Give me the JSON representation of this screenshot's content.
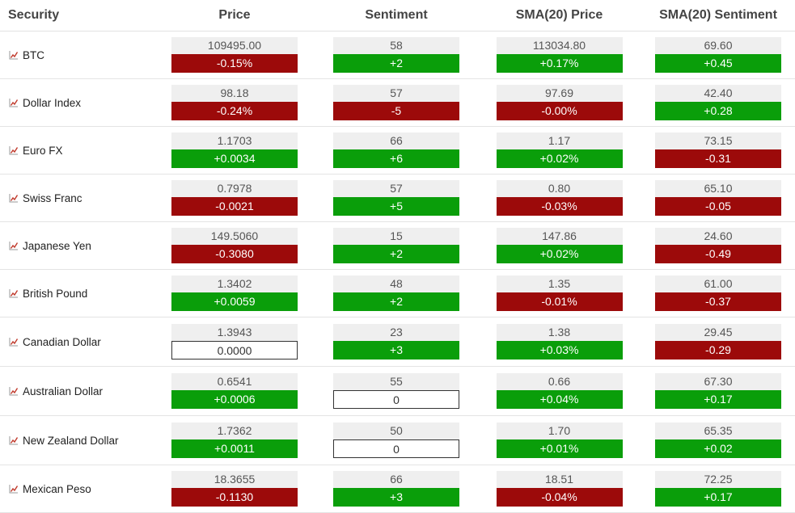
{
  "headers": {
    "security": "Security",
    "price": "Price",
    "sentiment": "Sentiment",
    "sma_price": "SMA(20) Price",
    "sma_sentiment": "SMA(20) Sentiment"
  },
  "colors": {
    "up": "#0a9e0a",
    "down": "#9c0a0a",
    "neutral_bg": "#efefef"
  },
  "rows": [
    {
      "name": "BTC",
      "height": 59,
      "price": "109495.00",
      "price_chg": "-0.15%",
      "price_dir": "down",
      "sent": "58",
      "sent_chg": "+2",
      "sent_dir": "up",
      "sma_price": "113034.80",
      "sma_price_chg": "+0.17%",
      "sma_price_dir": "up",
      "sma_sent": "69.60",
      "sma_sent_chg": "+0.45",
      "sma_sent_dir": "up"
    },
    {
      "name": "Dollar Index",
      "height": 59,
      "price": "98.18",
      "price_chg": "-0.24%",
      "price_dir": "down",
      "sent": "57",
      "sent_chg": "-5",
      "sent_dir": "down",
      "sma_price": "97.69",
      "sma_price_chg": "-0.00%",
      "sma_price_dir": "down",
      "sma_sent": "42.40",
      "sma_sent_chg": "+0.28",
      "sma_sent_dir": "up"
    },
    {
      "name": "Euro FX",
      "height": 59,
      "price": "1.1703",
      "price_chg": "+0.0034",
      "price_dir": "up",
      "sent": "66",
      "sent_chg": "+6",
      "sent_dir": "up",
      "sma_price": "1.17",
      "sma_price_chg": "+0.02%",
      "sma_price_dir": "up",
      "sma_sent": "73.15",
      "sma_sent_chg": "-0.31",
      "sma_sent_dir": "down"
    },
    {
      "name": "Swiss Franc",
      "height": 59,
      "price": "0.7978",
      "price_chg": "-0.0021",
      "price_dir": "down",
      "sent": "57",
      "sent_chg": "+5",
      "sent_dir": "up",
      "sma_price": "0.80",
      "sma_price_chg": "-0.03%",
      "sma_price_dir": "down",
      "sma_sent": "65.10",
      "sma_sent_chg": "-0.05",
      "sma_sent_dir": "down"
    },
    {
      "name": "Japanese Yen",
      "height": 59,
      "price": "149.5060",
      "price_chg": "-0.3080",
      "price_dir": "down",
      "sent": "15",
      "sent_chg": "+2",
      "sent_dir": "up",
      "sma_price": "147.86",
      "sma_price_chg": "+0.02%",
      "sma_price_dir": "up",
      "sma_sent": "24.60",
      "sma_sent_chg": "-0.49",
      "sma_sent_dir": "down"
    },
    {
      "name": "British Pound",
      "height": 59,
      "price": "1.3402",
      "price_chg": "+0.0059",
      "price_dir": "up",
      "sent": "48",
      "sent_chg": "+2",
      "sent_dir": "up",
      "sma_price": "1.35",
      "sma_price_chg": "-0.01%",
      "sma_price_dir": "down",
      "sma_sent": "61.00",
      "sma_sent_chg": "-0.37",
      "sma_sent_dir": "down"
    },
    {
      "name": "Canadian Dollar",
      "height": 61,
      "price": "1.3943",
      "price_chg": "0.0000",
      "price_dir": "flat",
      "sent": "23",
      "sent_chg": "+3",
      "sent_dir": "up",
      "sma_price": "1.38",
      "sma_price_chg": "+0.03%",
      "sma_price_dir": "up",
      "sma_sent": "29.45",
      "sma_sent_chg": "-0.29",
      "sma_sent_dir": "down"
    },
    {
      "name": "Australian Dollar",
      "height": 61,
      "price": "0.6541",
      "price_chg": "+0.0006",
      "price_dir": "up",
      "sent": "55",
      "sent_chg": "0",
      "sent_dir": "flat",
      "sma_price": "0.66",
      "sma_price_chg": "+0.04%",
      "sma_price_dir": "up",
      "sma_sent": "67.30",
      "sma_sent_chg": "+0.17",
      "sma_sent_dir": "up"
    },
    {
      "name": "New Zealand Dollar",
      "height": 61,
      "price": "1.7362",
      "price_chg": "+0.0011",
      "price_dir": "up",
      "sent": "50",
      "sent_chg": "0",
      "sent_dir": "flat",
      "sma_price": "1.70",
      "sma_price_chg": "+0.01%",
      "sma_price_dir": "up",
      "sma_sent": "65.35",
      "sma_sent_chg": "+0.02",
      "sma_sent_dir": "up"
    },
    {
      "name": "Mexican Peso",
      "height": 59,
      "price": "18.3655",
      "price_chg": "-0.1130",
      "price_dir": "down",
      "sent": "66",
      "sent_chg": "+3",
      "sent_dir": "up",
      "sma_price": "18.51",
      "sma_price_chg": "-0.04%",
      "sma_price_dir": "down",
      "sma_sent": "72.25",
      "sma_sent_chg": "+0.17",
      "sma_sent_dir": "up"
    }
  ]
}
